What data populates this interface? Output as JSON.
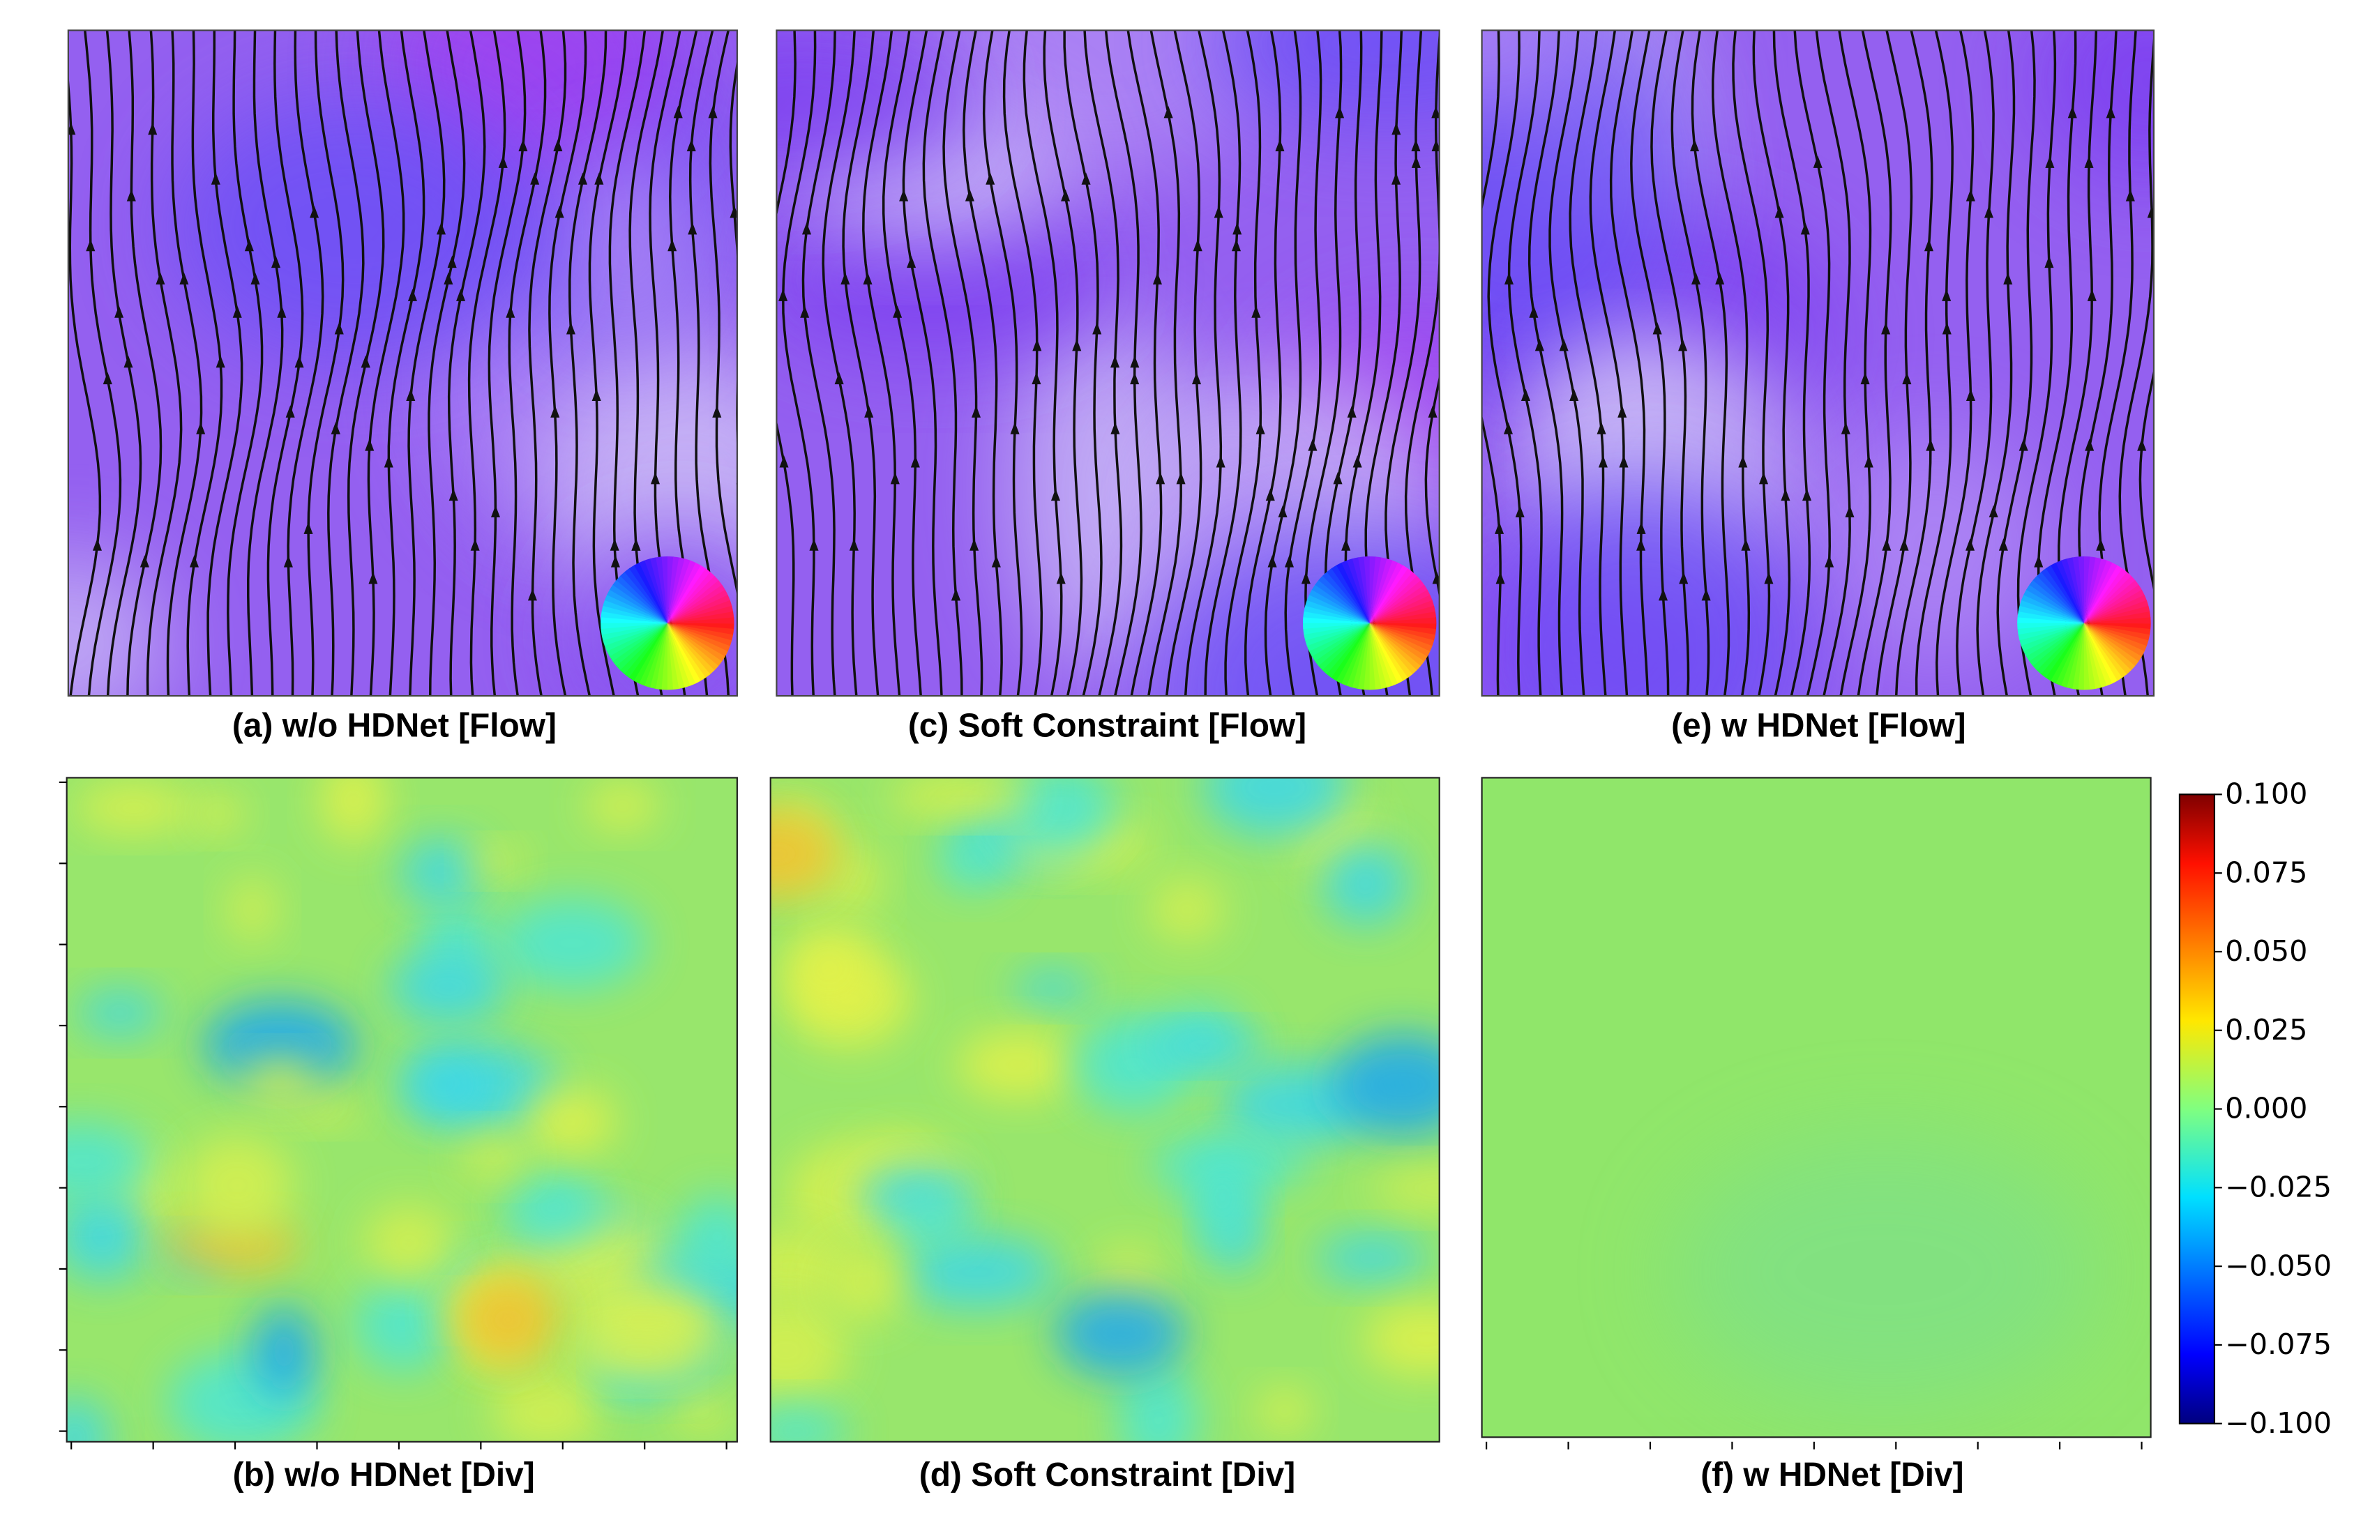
{
  "panels": [
    {
      "caption": "(a) w/o HDNet [Flow]"
    },
    {
      "caption": "(c) Soft Constraint [Flow]"
    },
    {
      "caption": "(e) w HDNet [Flow]"
    },
    {
      "caption": "(b) w/o HDNet [Div]"
    },
    {
      "caption": "(d) Soft Constraint [Div]"
    },
    {
      "caption": "(f) w HDNet [Div]"
    }
  ],
  "colorbar": {
    "lim": [
      -0.1,
      0.1
    ],
    "ticks": [
      {
        "value": 0.1,
        "label": "0.100"
      },
      {
        "value": 0.075,
        "label": "0.075"
      },
      {
        "value": 0.05,
        "label": "0.050"
      },
      {
        "value": 0.025,
        "label": "0.025"
      },
      {
        "value": 0,
        "label": "0.000"
      },
      {
        "value": -0.025,
        "label": "−0.025"
      },
      {
        "value": -0.05,
        "label": "−0.050"
      },
      {
        "value": -0.075,
        "label": "−0.075"
      },
      {
        "value": -0.1,
        "label": "−0.100"
      }
    ]
  }
}
